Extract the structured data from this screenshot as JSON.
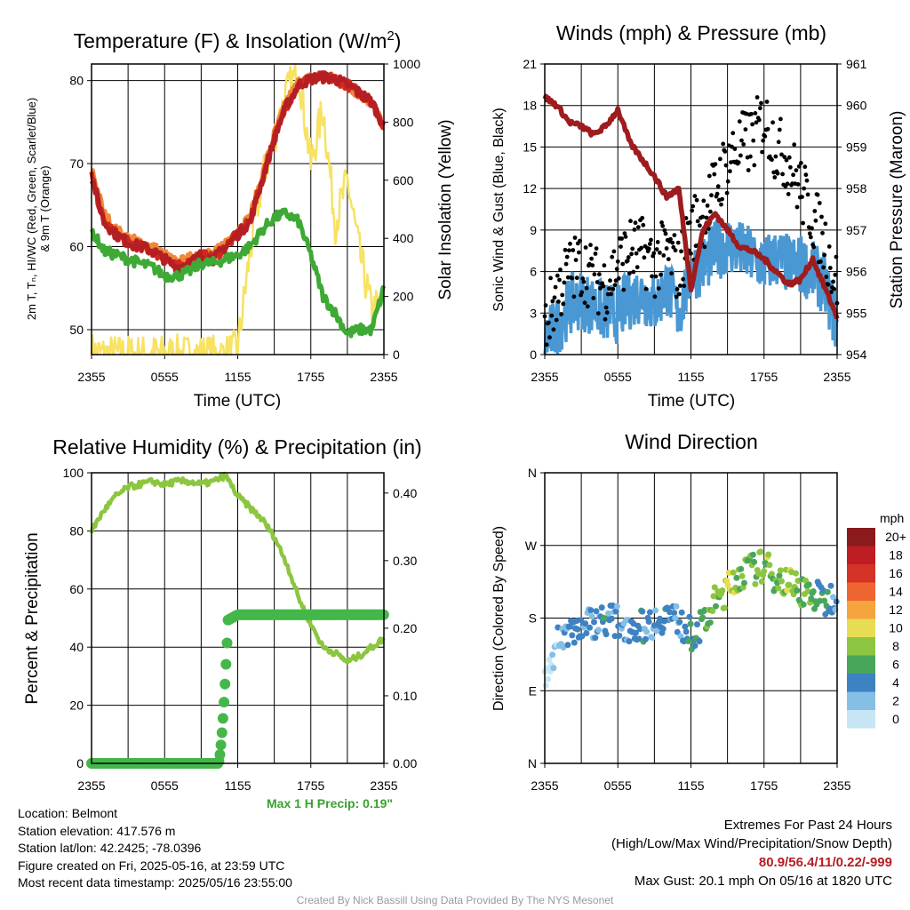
{
  "panels": {
    "temp": {
      "title": "Temperature (F) & Insolation (W/m²)",
      "title_main": "Temperature (F) & Insolation (W/m",
      "title_sup": "2",
      "title_end": ")",
      "ylabel_left_line1": "2m T, Tₙ, HI/WC (Red, Green, Scarlet/Blue)",
      "ylabel_left_line2": "& 9m T (Orange)",
      "ylabel_right": "Solar Insolation (Yellow)",
      "xlabel": "Time (UTC)"
    },
    "wind": {
      "title": "Winds (mph) & Pressure (mb)",
      "ylabel_left": "Sonic Wind & Gust (Blue, Black)",
      "ylabel_right": "Station Pressure (Maroon)",
      "xlabel": "Time (UTC)"
    },
    "rh": {
      "title": "Relative Humidity (%) & Precipitation (in)",
      "ylabel_left": "Percent & Precipitation"
    },
    "dir": {
      "title": "Wind Direction",
      "ylabel_left": "Direction (Colored By Speed)",
      "legend_unit": "mph"
    }
  },
  "info_left": {
    "location": "Location: Belmont",
    "elevation": "Station elevation: 417.576 m",
    "latlon": "Station lat/lon: 42.2425; -78.0396",
    "created": "Figure created on Fri, 2025-05-16, at 23:59 UTC",
    "recent": "Most recent data timestamp: 2025/05/16 23:55:00"
  },
  "max_precip": "Max 1 H Precip: 0.19\"",
  "info_right": {
    "line1": "Extremes For Past 24 Hours",
    "line2": "(High/Low/Max Wind/Precipitation/Snow Depth)",
    "values": "80.9/56.4/11/0.22/-999",
    "gust": "Max Gust: 20.1 mph On 05/16 at 1820 UTC"
  },
  "credit": "Created By Nick Bassill Using Data Provided By The NYS Mesonet",
  "colors": {
    "temp": "#cf2a1f",
    "temp9m": "#f0883a",
    "dewpoint": "#3ea935",
    "hiwc": "#b51e23",
    "solar": "#f7e262",
    "wind": "#4a98d3",
    "gust": "#000000",
    "pressure": "#9e1b1e",
    "rh": "#8cc63f",
    "precip": "#45b74a"
  },
  "chart_data": [
    {
      "type": "line",
      "panel": "temp",
      "x_ticks": [
        "2355",
        "0555",
        "1155",
        "1755",
        "2355"
      ],
      "x_hours": [
        0,
        24
      ],
      "ylim_left": [
        47,
        82
      ],
      "y_ticks_left": [
        50,
        60,
        70,
        80
      ],
      "ylim_right": [
        0,
        1000
      ],
      "y_ticks_right": [
        0,
        200,
        400,
        600,
        800,
        1000
      ],
      "series": [
        {
          "key": "temp",
          "axis": "left",
          "x": [
            0,
            1,
            2,
            3,
            4,
            5,
            6,
            7,
            8,
            9,
            10,
            11,
            12,
            13,
            14,
            15,
            16,
            17,
            18,
            19,
            20,
            21,
            22,
            23,
            24
          ],
          "values": [
            68.5,
            63,
            61.5,
            60.5,
            60,
            59.5,
            58.5,
            57.5,
            58,
            59,
            58.5,
            60,
            61.5,
            63,
            68,
            73,
            77,
            79.5,
            80.2,
            80.4,
            80.2,
            79.5,
            78.5,
            77.5,
            74.5
          ]
        },
        {
          "key": "temp9m",
          "axis": "left",
          "x": [
            0,
            1,
            2,
            3,
            4,
            5,
            6,
            7,
            8,
            9,
            10,
            11,
            12,
            13,
            14,
            15,
            16,
            17,
            18,
            19,
            20,
            21,
            22,
            23,
            24
          ],
          "values": [
            69.5,
            64,
            62,
            61,
            60.5,
            60,
            59,
            58,
            58.5,
            59.5,
            59,
            60.5,
            62,
            63.5,
            68.5,
            73.5,
            77.5,
            79.8,
            80.3,
            80.4,
            80.2,
            79.4,
            78.4,
            77.3,
            74.5
          ]
        },
        {
          "key": "hiwc",
          "axis": "left",
          "x": [
            0,
            1,
            2,
            3,
            4,
            5,
            6,
            7,
            8,
            9,
            10,
            11,
            12,
            13,
            14,
            15,
            16,
            17,
            18,
            19,
            20,
            21,
            22,
            23,
            24
          ],
          "values": [
            68.5,
            63,
            61.5,
            60.5,
            60,
            59.5,
            58.5,
            57.5,
            58,
            59,
            58.5,
            60,
            61.5,
            63,
            68,
            73,
            77,
            79.5,
            80.2,
            80.4,
            80.2,
            79.5,
            78.5,
            77.5,
            74.5
          ]
        },
        {
          "key": "dewpoint",
          "axis": "left",
          "x": [
            0,
            1,
            2,
            3,
            4,
            5,
            6,
            7,
            8,
            9,
            10,
            11,
            12,
            13,
            14,
            15,
            16,
            17,
            18,
            19,
            20,
            21,
            22,
            23,
            24
          ],
          "values": [
            62,
            59.5,
            59,
            58.5,
            58,
            57.5,
            56.5,
            56.5,
            57,
            58,
            58,
            58.5,
            59,
            60,
            62,
            63.5,
            64,
            63,
            59,
            54,
            52,
            49.5,
            50,
            50,
            55
          ]
        },
        {
          "key": "solar",
          "axis": "right",
          "x": [
            0,
            1,
            2,
            3,
            4,
            5,
            6,
            7,
            8,
            9,
            10,
            11,
            12,
            13,
            14,
            15,
            16,
            17,
            18,
            19,
            20,
            21,
            22,
            23,
            24
          ],
          "values": [
            8,
            0,
            0,
            0,
            0,
            0,
            0,
            0,
            0,
            0,
            0,
            0,
            20,
            350,
            600,
            750,
            900,
            980,
            650,
            850,
            450,
            600,
            350,
            150,
            180
          ]
        }
      ]
    },
    {
      "type": "line",
      "panel": "wind",
      "x_ticks": [
        "2355",
        "0555",
        "1155",
        "1755",
        "2355"
      ],
      "ylim_left": [
        0,
        21
      ],
      "y_ticks_left": [
        0,
        3,
        6,
        9,
        12,
        15,
        18,
        21
      ],
      "ylim_right": [
        954,
        961
      ],
      "y_ticks_right": [
        954,
        955,
        956,
        957,
        958,
        959,
        960,
        961
      ],
      "series": [
        {
          "key": "wind",
          "axis": "left",
          "x": [
            0,
            1,
            2,
            3,
            4,
            5,
            6,
            7,
            8,
            9,
            10,
            11,
            12,
            13,
            14,
            15,
            16,
            17,
            18,
            19,
            20,
            21,
            22,
            23,
            24
          ],
          "values": [
            1,
            2,
            3.5,
            4,
            3.5,
            3,
            3,
            4,
            4.5,
            3.5,
            5,
            3,
            6,
            6.5,
            7.5,
            8,
            7.5,
            7,
            6.5,
            7,
            6.5,
            6.5,
            6,
            5,
            2
          ]
        },
        {
          "key": "gust",
          "axis": "left",
          "x": [
            0,
            1,
            2,
            3,
            4,
            5,
            6,
            7,
            8,
            9,
            10,
            11,
            12,
            13,
            14,
            15,
            16,
            17,
            18,
            19,
            20,
            21,
            22,
            23,
            24
          ],
          "values": [
            2,
            4.5,
            6,
            6.5,
            5.5,
            5,
            6.5,
            7.5,
            7.5,
            6.5,
            7.5,
            6,
            9,
            10,
            12,
            14,
            15,
            15.5,
            17,
            15,
            14,
            12,
            10,
            8,
            5
          ]
        },
        {
          "key": "pressure",
          "axis": "right",
          "x": [
            0,
            1,
            2,
            3,
            4,
            5,
            6,
            7,
            8,
            9,
            10,
            11,
            12,
            13,
            14,
            15,
            16,
            17,
            18,
            19,
            20,
            21,
            22,
            23,
            24
          ],
          "values": [
            960.2,
            960,
            959.6,
            959.5,
            959.3,
            959.5,
            959.9,
            959.1,
            958.7,
            958.3,
            957.8,
            958,
            955.6,
            957,
            957.4,
            957,
            956.6,
            956.5,
            956.3,
            956,
            955.7,
            955.8,
            956.3,
            955.6,
            954.9
          ]
        }
      ]
    },
    {
      "type": "line",
      "panel": "rh",
      "x_ticks": [
        "2355",
        "0555",
        "1155",
        "1755",
        "2355"
      ],
      "ylim_left": [
        0,
        100
      ],
      "y_ticks_left": [
        0,
        20,
        40,
        60,
        80,
        100
      ],
      "ylim_right": [
        0,
        0.43
      ],
      "y_ticks_right": [
        "0.00",
        "0.10",
        "0.20",
        "0.30",
        "0.40"
      ],
      "series": [
        {
          "key": "rh",
          "axis": "left",
          "x": [
            0,
            1,
            2,
            3,
            4,
            5,
            6,
            7,
            8,
            9,
            10,
            11,
            12,
            13,
            14,
            15,
            16,
            17,
            18,
            19,
            20,
            21,
            22,
            23,
            24
          ],
          "values": [
            80,
            87,
            92,
            95,
            96,
            97,
            96,
            97,
            97,
            96,
            97,
            99,
            92,
            88,
            84,
            78,
            69,
            57,
            48,
            40,
            38,
            35,
            37,
            40,
            43
          ]
        },
        {
          "key": "precip",
          "axis": "right",
          "x": [
            0,
            1,
            2,
            3,
            4,
            5,
            6,
            7,
            8,
            9,
            10,
            11,
            12,
            13,
            14,
            15,
            16,
            17,
            18,
            19,
            20,
            21,
            22,
            23,
            24
          ],
          "values": [
            0,
            0,
            0,
            0,
            0,
            0,
            0,
            0,
            0,
            0,
            0,
            0.21,
            0.22,
            0.22,
            0.22,
            0.22,
            0.22,
            0.22,
            0.22,
            0.22,
            0.22,
            0.22,
            0.22,
            0.22,
            0.22
          ]
        }
      ]
    },
    {
      "type": "scatter",
      "panel": "dir",
      "x_ticks": [
        "2355",
        "0555",
        "1155",
        "1755",
        "2355"
      ],
      "y_ticks": [
        "N",
        "E",
        "S",
        "W",
        "N"
      ],
      "ylim": [
        0,
        360
      ],
      "legend_levels": [
        "0",
        "2",
        "4",
        "6",
        "8",
        "10",
        "12",
        "14",
        "16",
        "18",
        "20+"
      ],
      "legend_colors": [
        "#c6e6f6",
        "#85bfe6",
        "#3f82c2",
        "#48a65b",
        "#8cc640",
        "#e8dc52",
        "#f6a43d",
        "#ef6531",
        "#d53328",
        "#be1e23",
        "#8b1a1c"
      ],
      "series": [
        {
          "name": "points",
          "x": [
            0,
            1,
            2,
            3,
            4,
            5,
            6,
            7,
            8,
            9,
            10,
            11,
            12,
            13,
            14,
            15,
            16,
            17,
            18,
            19,
            20,
            21,
            22,
            23,
            24
          ],
          "values": [
            100,
            150,
            165,
            170,
            175,
            180,
            175,
            170,
            170,
            175,
            185,
            175,
            160,
            170,
            200,
            215,
            235,
            240,
            245,
            230,
            225,
            215,
            210,
            200,
            210
          ],
          "speed": [
            1,
            2,
            3,
            4,
            3,
            4,
            3,
            3,
            4,
            3,
            4,
            3,
            5,
            6,
            8,
            9,
            8,
            7,
            8,
            7,
            8,
            7,
            6,
            5,
            3
          ]
        }
      ]
    }
  ]
}
